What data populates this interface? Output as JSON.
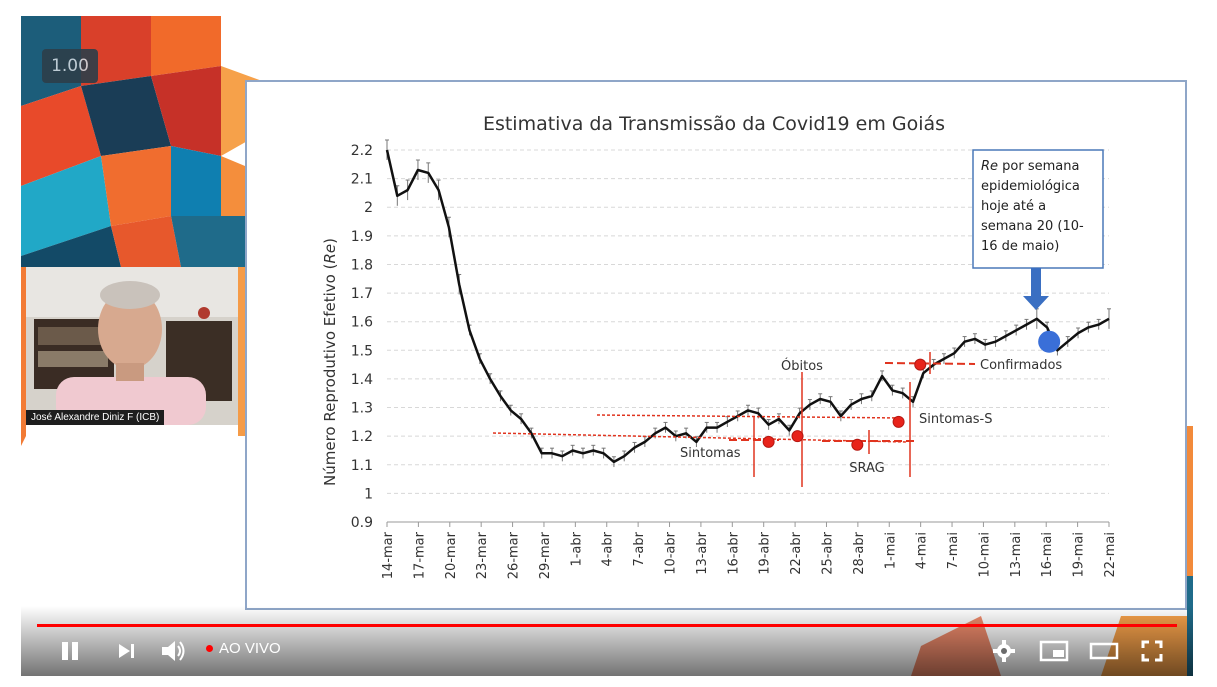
{
  "player": {
    "speed": "1.00",
    "live_label": "AO VIVO",
    "presenter_name": "José Alexandre Diniz F (ICB)",
    "controls": {
      "play_pause": "pause-icon",
      "next": "next-icon",
      "volume": "volume-icon",
      "settings": "gear-icon",
      "miniplayer": "miniplayer-icon",
      "theater": "theater-mode-icon",
      "fullscreen": "fullscreen-icon"
    },
    "accent_color": "#ff0000"
  },
  "chart_data": {
    "type": "line",
    "title": "Estimativa da Transmissão da Covid19 em Goiás",
    "ylabel_prefix": "Número Reprodutivo Efetivo (",
    "ylabel_italic": "Re",
    "ylabel_suffix": ")",
    "ylim": [
      0.9,
      2.2
    ],
    "yticks": [
      "2.2",
      "2.1",
      "2",
      "1.9",
      "1.8",
      "1.7",
      "1.6",
      "1.5",
      "1.4",
      "1.3",
      "1.2",
      "1.1",
      "1",
      "0.9"
    ],
    "yticks_values": [
      2.2,
      2.1,
      2.0,
      1.9,
      1.8,
      1.7,
      1.6,
      1.5,
      1.4,
      1.3,
      1.2,
      1.1,
      1.0,
      0.9
    ],
    "xticks": [
      "14-mar",
      "17-mar",
      "20-mar",
      "23-mar",
      "26-mar",
      "29-mar",
      "1-abr",
      "4-abr",
      "7-abr",
      "10-abr",
      "13-abr",
      "16-abr",
      "19-abr",
      "22-abr",
      "25-abr",
      "28-abr",
      "1-mai",
      "4-mai",
      "7-mai",
      "10-mai",
      "13-mai",
      "16-mai",
      "19-mai",
      "22-mai"
    ],
    "series": [
      {
        "name": "Re",
        "values": [
          2.2,
          2.04,
          2.06,
          2.13,
          2.12,
          2.06,
          1.93,
          1.73,
          1.57,
          1.47,
          1.4,
          1.34,
          1.29,
          1.26,
          1.21,
          1.14,
          1.14,
          1.13,
          1.15,
          1.14,
          1.15,
          1.14,
          1.11,
          1.13,
          1.16,
          1.18,
          1.21,
          1.23,
          1.2,
          1.21,
          1.18,
          1.23,
          1.23,
          1.25,
          1.27,
          1.29,
          1.28,
          1.24,
          1.26,
          1.22,
          1.28,
          1.31,
          1.33,
          1.32,
          1.27,
          1.31,
          1.33,
          1.34,
          1.41,
          1.36,
          1.35,
          1.32,
          1.42,
          1.45,
          1.47,
          1.49,
          1.53,
          1.54,
          1.52,
          1.53,
          1.55,
          1.57,
          1.59,
          1.61,
          1.58,
          1.5,
          1.53,
          1.56,
          1.58,
          1.59,
          1.61
        ]
      }
    ],
    "annotations": {
      "obitos": "Óbitos",
      "confirmados": "Confirmados",
      "sintomas_s": "Sintomas-S",
      "sintomas": "Sintomas",
      "srag": "SRAG",
      "callout_italic": "Re",
      "callout_line1": " por semana",
      "callout_line2": "epidemiológica",
      "callout_line3": "hoje até a",
      "callout_line4": "semana 20 (10-",
      "callout_line5": "16 de maio)"
    },
    "markers": [
      {
        "name": "sintomas",
        "x_index": 37,
        "y": 1.18
      },
      {
        "name": "obitos",
        "x_index": 39.8,
        "y": 1.2
      },
      {
        "name": "srag",
        "x_index": 45.6,
        "y": 1.17
      },
      {
        "name": "sintomas-s",
        "x_index": 49.6,
        "y": 1.25
      },
      {
        "name": "confirmados",
        "x_index": 51.7,
        "y": 1.45
      }
    ],
    "current_estimate": {
      "x_index": 64.2,
      "y": 1.53
    },
    "grid": true
  }
}
